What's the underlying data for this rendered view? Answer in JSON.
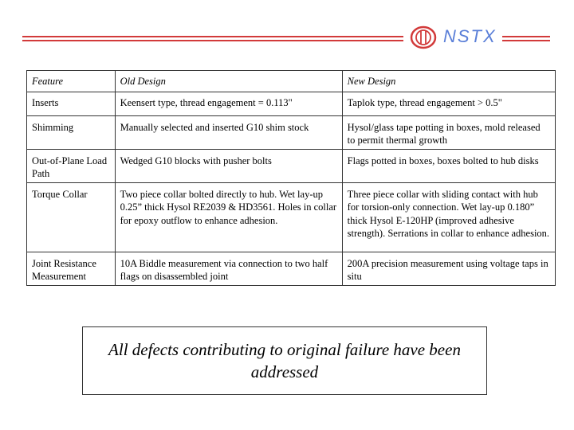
{
  "logo": {
    "text": "NSTX"
  },
  "table": {
    "headers": [
      "Feature",
      "Old Design",
      "New Design"
    ],
    "rows": [
      {
        "feature": "Inserts",
        "old": "Keensert type, thread engagement = 0.113\"",
        "new": "Taplok type, thread engagement > 0.5\""
      },
      {
        "feature": "Shimming",
        "old": "Manually selected and inserted G10 shim stock",
        "new": "Hysol/glass tape potting in boxes, mold released to permit thermal growth"
      },
      {
        "feature": "Out-of-Plane Load Path",
        "old": "Wedged G10 blocks with pusher bolts",
        "new": "Flags potted in boxes, boxes bolted to hub disks"
      },
      {
        "feature": "Torque Collar",
        "old": "Two piece collar bolted directly to hub. Wet lay-up 0.25” thick Hysol RE2039 & HD3561. Holes in collar for epoxy outflow to enhance adhesion.",
        "new": "Three piece collar with sliding contact with hub for torsion-only connection. Wet lay-up 0.180” thick Hysol E-120HP (improved adhesive strength). Serrations in collar to enhance adhesion."
      },
      {
        "feature": "Joint Resistance Measurement",
        "old": "10A Biddle measurement via connection to two half flags on disassembled joint",
        "new": "200A precision measurement using voltage taps in situ"
      }
    ]
  },
  "conclusion": {
    "text": "All defects contributing to original failure have been addressed"
  },
  "colors": {
    "header_line": "#d23a3a",
    "logo": "#5a7fd8"
  }
}
